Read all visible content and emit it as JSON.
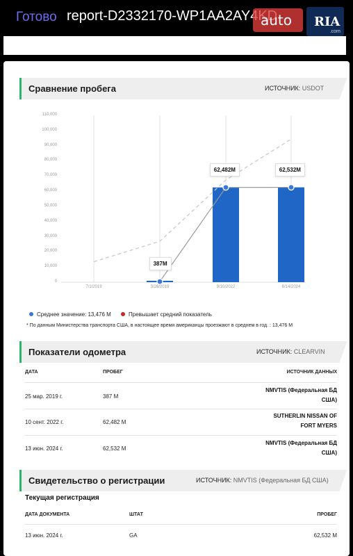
{
  "topbar": {
    "done_label": "Готово",
    "title": "report-D2332170-WP1AA2AY4KD",
    "watermark_auto": "auto",
    "watermark_ria": "RIA",
    "watermark_com": ".com"
  },
  "mileage_section": {
    "title": "Сравнение пробега",
    "source_label": "ИСТОЧНИК:",
    "source_value": "USDOT"
  },
  "chart_data": {
    "type": "bar",
    "y_ticks": [
      "0",
      "10,000",
      "20,000",
      "30,000",
      "40,000",
      "50,000",
      "60,000",
      "70,000",
      "80,000",
      "90,000",
      "100,000",
      "110,000"
    ],
    "ylim": [
      0,
      110000
    ],
    "categories": [
      "7/1/2019",
      "3/26/2019",
      "9/10/2022",
      "6/14/2024"
    ],
    "series": [
      {
        "name": "Среднее значение: 13,476 M",
        "type": "line",
        "dashed": true,
        "values": [
          13476,
          26952,
          67380,
          94332
        ]
      },
      {
        "type": "bar-line",
        "values": [
          null,
          387,
          62482,
          62532
        ]
      }
    ],
    "data_labels": [
      "",
      "387M",
      "62,482M",
      "62,532M"
    ],
    "bar_color": "#1f66c6",
    "point_color": "#3a78d6",
    "grid": false
  },
  "legend": {
    "average_label": "Среднее значение: 13,476 M",
    "average_color": "#3a78d6",
    "exceeds_label": "Превышает средний показатель",
    "exceeds_color": "#c62828"
  },
  "footnote": "* По данным Министерства транспорта США, в настоящее время американцы проезжают в среднем в год. : 13,476 M",
  "odometer_section": {
    "title": "Показатели одометра",
    "source_label": "ИСТОЧНИК:",
    "source_value": "CLEARVIN",
    "headers": {
      "date": "ДАТА",
      "mileage": "ПРОБЕГ",
      "source": "ИСТОЧНИК ДАННЫХ"
    },
    "rows": [
      {
        "date": "25 мар. 2019 г.",
        "mileage": "387 M",
        "source_line1": "NMVTIS (Федеральная БД",
        "source_line2": "США)"
      },
      {
        "date": "10 сент. 2022 г.",
        "mileage": "62,482 M",
        "source_line1": "SUTHERLIN NISSAN OF",
        "source_line2": "FORT MYERS"
      },
      {
        "date": "13 июн. 2024 г.",
        "mileage": "62,532 M",
        "source_line1": "NMVTIS (Федеральная БД",
        "source_line2": "США)"
      }
    ]
  },
  "registration_section": {
    "title": "Свидетельство о регистрации",
    "source_label": "ИСТОЧНИК:",
    "source_value": "NMVTIS (Федеральная БД США)",
    "current_label": "Текущая регистрация",
    "headers": {
      "doc_date": "ДАТА ДОКУМЕНТА",
      "state": "ШТАТ",
      "mileage": "ПРОБЕГ"
    },
    "row": {
      "doc_date": "13 июн. 2024 г.",
      "state": "GA",
      "mileage": "62,532 M"
    }
  }
}
